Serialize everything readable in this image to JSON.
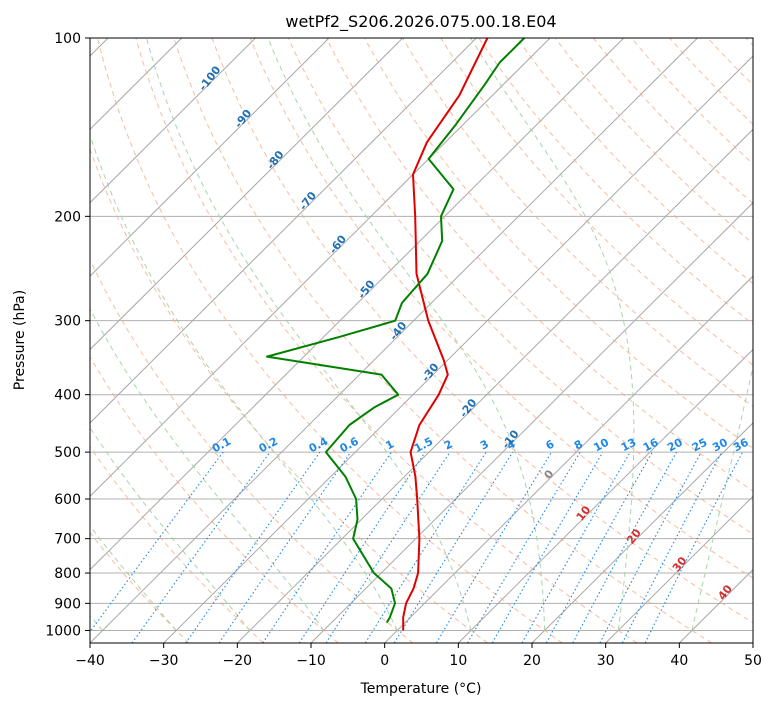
{
  "chart_data": {
    "type": "line",
    "subtype": "skew-t log-p",
    "title": "wetPf2_S206.2026.075.00.18.E04",
    "xlabel": "Temperature (°C)",
    "ylabel": "Pressure (hPa)",
    "xlim": [
      -40,
      50
    ],
    "ylim": [
      1050,
      100
    ],
    "x_ticks": [
      "−40",
      "−30",
      "−20",
      "−10",
      "0",
      "10",
      "20",
      "30",
      "40",
      "50"
    ],
    "x_tick_values": [
      -40,
      -30,
      -20,
      -10,
      0,
      10,
      20,
      30,
      40,
      50
    ],
    "y_ticks": [
      "100",
      "200",
      "300",
      "400",
      "500",
      "600",
      "700",
      "800",
      "900",
      "1000"
    ],
    "y_tick_values": [
      100,
      200,
      300,
      400,
      500,
      600,
      700,
      800,
      900,
      1000
    ],
    "grid": true,
    "series": [
      {
        "name": "temperature",
        "color": "#e00000",
        "points": [
          {
            "p": 1000,
            "t": 0.8
          },
          {
            "p": 950,
            "t": -1.0
          },
          {
            "p": 900,
            "t": -2.5
          },
          {
            "p": 850,
            "t": -3.5
          },
          {
            "p": 800,
            "t": -5.0
          },
          {
            "p": 700,
            "t": -9.5
          },
          {
            "p": 600,
            "t": -15.2
          },
          {
            "p": 550,
            "t": -18.5
          },
          {
            "p": 500,
            "t": -22.5
          },
          {
            "p": 450,
            "t": -25.0
          },
          {
            "p": 400,
            "t": -26.5
          },
          {
            "p": 370,
            "t": -28.0
          },
          {
            "p": 350,
            "t": -30.5
          },
          {
            "p": 300,
            "t": -38.0
          },
          {
            "p": 250,
            "t": -46.0
          },
          {
            "p": 200,
            "t": -54.0
          },
          {
            "p": 170,
            "t": -60.0
          },
          {
            "p": 150,
            "t": -62.5
          },
          {
            "p": 125,
            "t": -64.5
          },
          {
            "p": 100,
            "t": -68.5
          }
        ]
      },
      {
        "name": "dewpoint",
        "color": "#008000",
        "points": [
          {
            "p": 970,
            "t": -2.5
          },
          {
            "p": 950,
            "t": -2.8
          },
          {
            "p": 900,
            "t": -4.0
          },
          {
            "p": 850,
            "t": -6.5
          },
          {
            "p": 800,
            "t": -11.0
          },
          {
            "p": 700,
            "t": -18.5
          },
          {
            "p": 650,
            "t": -20.5
          },
          {
            "p": 600,
            "t": -23.5
          },
          {
            "p": 550,
            "t": -28.0
          },
          {
            "p": 500,
            "t": -34.0
          },
          {
            "p": 450,
            "t": -34.5
          },
          {
            "p": 420,
            "t": -33.5
          },
          {
            "p": 400,
            "t": -32.0
          },
          {
            "p": 370,
            "t": -37.0
          },
          {
            "p": 345,
            "t": -55.0
          },
          {
            "p": 320,
            "t": -48.0
          },
          {
            "p": 300,
            "t": -42.5
          },
          {
            "p": 280,
            "t": -44.0
          },
          {
            "p": 250,
            "t": -44.5
          },
          {
            "p": 220,
            "t": -47.0
          },
          {
            "p": 200,
            "t": -50.5
          },
          {
            "p": 180,
            "t": -52.5
          },
          {
            "p": 160,
            "t": -60.0
          },
          {
            "p": 140,
            "t": -61.0
          },
          {
            "p": 120,
            "t": -62.5
          },
          {
            "p": 110,
            "t": -63.5
          },
          {
            "p": 100,
            "t": -63.5
          }
        ]
      }
    ],
    "background_lines": {
      "isotherms": {
        "values": [
          -100,
          -90,
          -80,
          -70,
          -60,
          -50,
          -40,
          -30,
          -20,
          -10,
          0,
          10,
          20,
          30,
          40,
          50
        ],
        "color": "#999999",
        "style": "solid"
      },
      "dry_adiabats_theta": {
        "values": [
          -30,
          -20,
          -10,
          0,
          10,
          20,
          30,
          40,
          50,
          60,
          70,
          80,
          90,
          100,
          110,
          120,
          130,
          140,
          150,
          160,
          170,
          180,
          190,
          200
        ],
        "color": "#f4a582",
        "style": "dashed"
      },
      "moist_adiabats_tw": {
        "values": [
          -20,
          -10,
          0,
          10,
          20,
          30
        ],
        "color": "#9fd09f",
        "style": "dashed"
      },
      "mixing_ratio": {
        "values": [
          0.1,
          0.2,
          0.4,
          0.6,
          1,
          1.5,
          2,
          3,
          4,
          6,
          8,
          10,
          13,
          16,
          20,
          25,
          30,
          36
        ],
        "color": "#1e88e5",
        "style": "dotted"
      }
    },
    "annotations": {
      "blue_temperature_labels": [
        {
          "text": "-100",
          "value": -100,
          "p": 118
        },
        {
          "text": "-90",
          "value": -90,
          "p": 138
        },
        {
          "text": "-80",
          "value": -80,
          "p": 162
        },
        {
          "text": "-70",
          "value": -70,
          "p": 190
        },
        {
          "text": "-60",
          "value": -60,
          "p": 225
        },
        {
          "text": "-50",
          "value": -50,
          "p": 268
        },
        {
          "text": "-40",
          "value": -40,
          "p": 315
        },
        {
          "text": "-30",
          "value": -30,
          "p": 370
        },
        {
          "text": "-20",
          "value": -20,
          "p": 425
        },
        {
          "text": "-10",
          "value": -10,
          "p": 480
        }
      ],
      "mixing_ratio_labels": [
        "0.1",
        "0.2",
        "0.4",
        "0.6",
        "1",
        "1.5",
        "2",
        "3",
        "4",
        "6",
        "8",
        "10",
        "13",
        "16",
        "20",
        "25",
        "30",
        "36"
      ],
      "zero_label": "0",
      "red_temperature_labels": [
        "10",
        "20",
        "30",
        "40"
      ]
    }
  }
}
